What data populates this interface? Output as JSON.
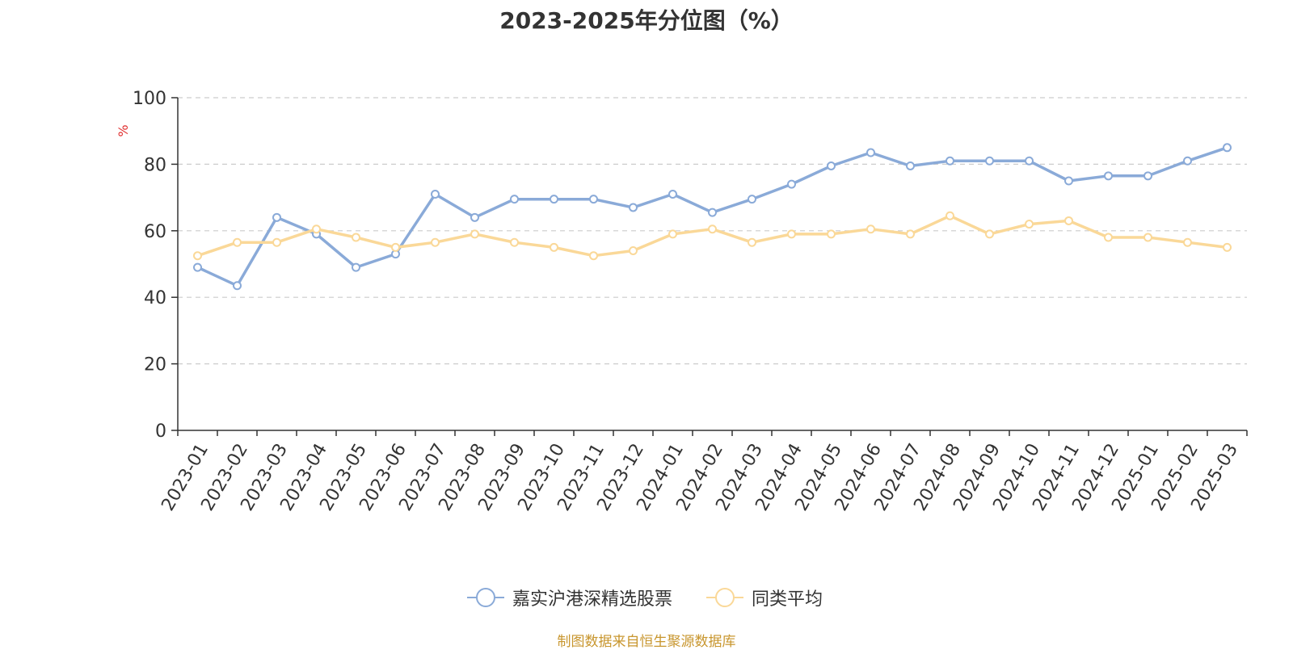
{
  "chart_data": {
    "type": "line",
    "title": "2023-2025年分位图（%）",
    "ylabel": "%",
    "xlabel": "",
    "ylim": [
      0,
      100
    ],
    "yticks": [
      0,
      20,
      40,
      60,
      80,
      100
    ],
    "grid": "horizontal-dashed",
    "legend_position": "bottom",
    "categories": [
      "2023-01",
      "2023-02",
      "2023-03",
      "2023-04",
      "2023-05",
      "2023-06",
      "2023-07",
      "2023-08",
      "2023-09",
      "2023-10",
      "2023-11",
      "2023-12",
      "2024-01",
      "2024-02",
      "2024-03",
      "2024-04",
      "2024-05",
      "2024-06",
      "2024-07",
      "2024-08",
      "2024-09",
      "2024-10",
      "2024-11",
      "2024-12",
      "2025-01",
      "2025-02",
      "2025-03"
    ],
    "series": [
      {
        "name": "嘉实沪港深精选股票",
        "color": "#8aaad8",
        "values": [
          49,
          43.5,
          64,
          59,
          49,
          53,
          71,
          64,
          69.5,
          69.5,
          69.5,
          67,
          71,
          65.5,
          69.5,
          74,
          79.5,
          83.5,
          79.5,
          81,
          81,
          81,
          75,
          76.5,
          76.5,
          81,
          85
        ]
      },
      {
        "name": "同类平均",
        "color": "#fad898",
        "values": [
          52.5,
          56.5,
          56.5,
          60.5,
          58,
          55,
          56.5,
          59,
          56.5,
          55,
          52.5,
          54,
          59,
          60.5,
          56.5,
          59,
          59,
          60.5,
          59,
          64.5,
          59,
          62,
          63,
          58,
          58,
          56.5,
          55
        ]
      }
    ]
  },
  "source_text": "制图数据来自恒生聚源数据库",
  "colors": {
    "axis": "#333333",
    "grid": "#cccccc",
    "ylabel": "#e03030",
    "source": "#c8962e"
  }
}
